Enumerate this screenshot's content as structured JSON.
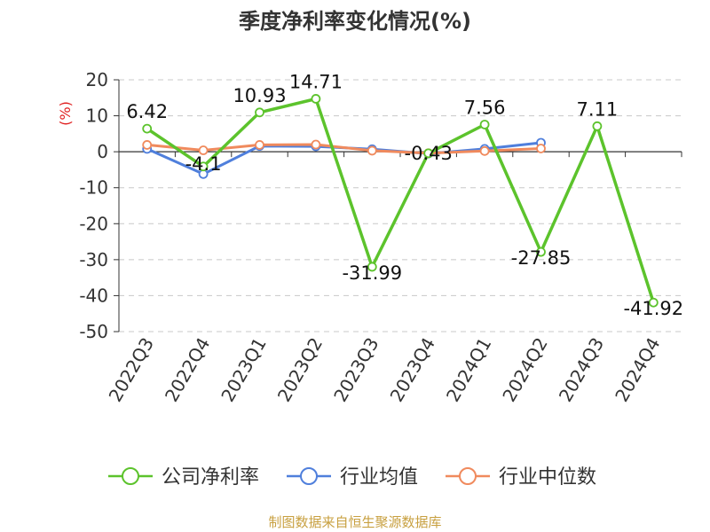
{
  "chart_data": {
    "type": "line",
    "title": "季度净利率变化情况(%)",
    "ylabel": "(%)",
    "ylim": [
      -50,
      20
    ],
    "yticks": [
      20,
      10,
      0,
      -10,
      -20,
      -30,
      -40,
      -50
    ],
    "grid": true,
    "legend_position": "bottom",
    "categories": [
      "2022Q3",
      "2022Q4",
      "2023Q1",
      "2023Q2",
      "2023Q3",
      "2023Q4",
      "2024Q1",
      "2024Q2",
      "2024Q3",
      "2024Q4"
    ],
    "series": [
      {
        "name": "公司净利率",
        "color": "#5cc32c",
        "values": [
          6.42,
          -4.1,
          10.93,
          14.71,
          -31.99,
          -0.43,
          7.56,
          -27.85,
          7.11,
          -41.92
        ],
        "labels": [
          "6.42",
          "-4.1",
          "10.93",
          "14.71",
          "-31.99",
          "-0.43",
          "7.56",
          "-27.85",
          "7.11",
          "-41.92"
        ]
      },
      {
        "name": "行业均值",
        "color": "#4f7fdc",
        "values": [
          0.8,
          -6.2,
          1.6,
          1.5,
          0.7,
          -0.5,
          0.8,
          2.5,
          null,
          null
        ]
      },
      {
        "name": "行业中位数",
        "color": "#f08a5d",
        "values": [
          1.9,
          0.4,
          1.9,
          2.0,
          0.3,
          -0.4,
          0.2,
          0.9,
          null,
          null
        ]
      }
    ]
  },
  "source": "制图数据来自恒生聚源数据库"
}
